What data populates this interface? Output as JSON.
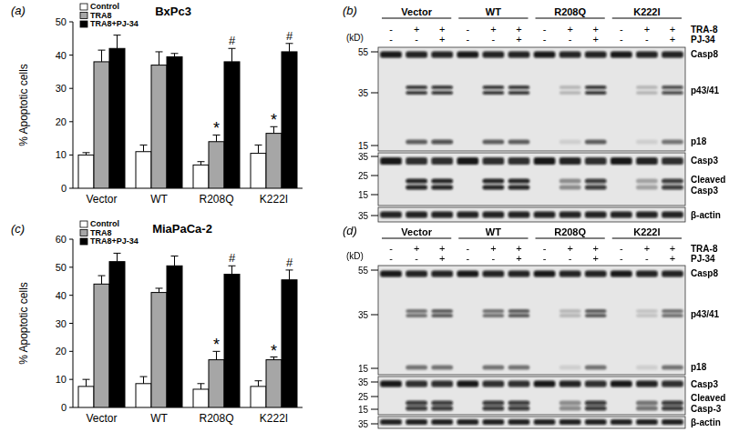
{
  "chart_data": [
    {
      "type": "bar",
      "panel_label": "(a)",
      "title": "BxPc3",
      "y_label": "% Apoptotic cells",
      "categories": [
        "Vector",
        "WT",
        "R208Q",
        "K222I"
      ],
      "series": [
        {
          "name": "Control",
          "color": "#ffffff",
          "values": [
            10,
            11,
            7,
            10.5
          ],
          "errors": [
            0.7,
            2,
            1,
            2.5
          ],
          "significance": [
            null,
            null,
            null,
            null
          ]
        },
        {
          "name": "TRA8",
          "color": "#a6a6a6",
          "values": [
            38,
            37,
            14,
            16.5
          ],
          "errors": [
            3.5,
            4,
            2,
            2
          ],
          "significance": [
            null,
            null,
            "*",
            "*"
          ]
        },
        {
          "name": "TRA8+PJ-34",
          "color": "#000000",
          "values": [
            42,
            39.5,
            38,
            41
          ],
          "errors": [
            4,
            1,
            4,
            2.5
          ],
          "significance": [
            null,
            null,
            "#",
            "#"
          ]
        }
      ],
      "ylim": [
        0,
        50
      ],
      "yticks": [
        0,
        10,
        20,
        30,
        40,
        50
      ],
      "legend": "upper left"
    },
    {
      "type": "bar",
      "panel_label": "(c)",
      "title": "MiaPaCa-2",
      "y_label": "% Apoptotic cells",
      "categories": [
        "Vector",
        "WT",
        "R208Q",
        "K222I"
      ],
      "series": [
        {
          "name": "Control",
          "color": "#ffffff",
          "values": [
            7.5,
            8.5,
            6.5,
            7.5
          ],
          "errors": [
            2.5,
            2.5,
            2,
            2
          ],
          "significance": [
            null,
            null,
            null,
            null
          ]
        },
        {
          "name": "TRA8",
          "color": "#a6a6a6",
          "values": [
            44,
            41,
            17,
            17
          ],
          "errors": [
            3,
            1.5,
            3,
            1
          ],
          "significance": [
            null,
            null,
            "*",
            "*"
          ]
        },
        {
          "name": "TRA8+PJ-34",
          "color": "#000000",
          "values": [
            52,
            50.5,
            47.5,
            45.5
          ],
          "errors": [
            3,
            3.5,
            3,
            3.5
          ],
          "significance": [
            null,
            null,
            "#",
            "#"
          ]
        }
      ],
      "ylim": [
        0,
        60
      ],
      "yticks": [
        0,
        10,
        20,
        30,
        40,
        50,
        60
      ],
      "legend": "upper left"
    }
  ],
  "blots": [
    {
      "panel_label": "(b)",
      "unit_label": "(kD)",
      "groups": [
        "Vector",
        "WT",
        "R208Q",
        "K222I"
      ],
      "treatments": [
        {
          "name": "TRA-8",
          "lanes": [
            "-",
            "+",
            "+",
            "-",
            "+",
            "+",
            "-",
            "+",
            "+",
            "-",
            "+",
            "+"
          ]
        },
        {
          "name": "PJ-34",
          "lanes": [
            "-",
            "-",
            "+",
            "-",
            "-",
            "+",
            "-",
            "-",
            "+",
            "-",
            "-",
            "+"
          ]
        }
      ],
      "panels": [
        {
          "markers": [
            55,
            35,
            15
          ],
          "bands": [
            {
              "label": [
                "Casp8"
              ],
              "intensity": [
                0.95,
                0.9,
                0.9,
                0.95,
                0.9,
                0.9,
                0.95,
                0.9,
                0.9,
                0.95,
                0.9,
                0.9
              ]
            },
            {
              "label": [
                "p43/41"
              ],
              "intensity": [
                0,
                0.8,
                0.8,
                0,
                0.8,
                0.8,
                0,
                0.2,
                0.8,
                0,
                0.2,
                0.7
              ]
            },
            {
              "label": [
                "p18"
              ],
              "intensity": [
                0,
                0.6,
                0.7,
                0,
                0.6,
                0.6,
                0,
                0.1,
                0.6,
                0,
                0.1,
                0.5
              ]
            }
          ]
        },
        {
          "markers": [
            35,
            25,
            15
          ],
          "bands": [
            {
              "label": [
                "Casp3"
              ],
              "intensity": [
                0.95,
                0.85,
                0.85,
                0.95,
                0.85,
                0.85,
                0.95,
                0.9,
                0.85,
                0.95,
                0.9,
                0.85
              ]
            },
            {
              "label": [
                "Cleaved",
                "Casp3"
              ],
              "intensity": [
                0,
                0.9,
                0.9,
                0,
                0.9,
                0.9,
                0,
                0.4,
                0.8,
                0,
                0.3,
                0.8
              ]
            }
          ]
        },
        {
          "markers": [
            35
          ],
          "bands": [
            {
              "label": [
                "β-actin"
              ],
              "intensity": [
                0.9,
                0.9,
                0.9,
                0.9,
                0.9,
                0.9,
                0.9,
                0.9,
                0.9,
                0.9,
                0.9,
                0.9
              ]
            }
          ]
        }
      ]
    },
    {
      "panel_label": "(d)",
      "unit_label": "(kD)",
      "groups": [
        "Vector",
        "WT",
        "R208Q",
        "K222I"
      ],
      "treatments": [
        {
          "name": "TRA-8",
          "lanes": [
            "-",
            "+",
            "+",
            "-",
            "+",
            "+",
            "-",
            "+",
            "+",
            "-",
            "+",
            "+"
          ]
        },
        {
          "name": "PJ-34",
          "lanes": [
            "-",
            "-",
            "+",
            "-",
            "-",
            "+",
            "-",
            "-",
            "+",
            "-",
            "-",
            "+"
          ]
        }
      ],
      "panels": [
        {
          "markers": [
            55,
            35,
            15
          ],
          "bands": [
            {
              "label": [
                "Casp8"
              ],
              "intensity": [
                0.95,
                0.9,
                0.9,
                0.95,
                0.9,
                0.9,
                0.95,
                0.9,
                0.9,
                0.95,
                0.9,
                0.9
              ]
            },
            {
              "label": [
                "p43/41"
              ],
              "intensity": [
                0,
                0.5,
                0.6,
                0,
                0.5,
                0.6,
                0,
                0.2,
                0.6,
                0,
                0.15,
                0.5
              ]
            },
            {
              "label": [
                "p18"
              ],
              "intensity": [
                0,
                0.5,
                0.5,
                0,
                0.5,
                0.5,
                0,
                0.1,
                0.5,
                0,
                0.1,
                0.5
              ]
            }
          ]
        },
        {
          "markers": [
            35,
            25,
            15
          ],
          "bands": [
            {
              "label": [
                "Casp3"
              ],
              "intensity": [
                0.95,
                0.85,
                0.85,
                0.95,
                0.85,
                0.85,
                0.95,
                0.9,
                0.85,
                0.95,
                0.9,
                0.85
              ]
            },
            {
              "label": [
                "Cleaved",
                "Casp-3"
              ],
              "intensity": [
                0,
                0.8,
                0.8,
                0,
                0.8,
                0.8,
                0,
                0.4,
                0.8,
                0,
                0.5,
                0.8
              ]
            }
          ]
        },
        {
          "markers": [
            35
          ],
          "bands": [
            {
              "label": [
                "β-actin"
              ],
              "intensity": [
                0.9,
                0.9,
                0.9,
                0.9,
                0.9,
                0.9,
                0.9,
                0.9,
                0.9,
                0.9,
                0.9,
                0.9
              ]
            }
          ]
        }
      ]
    }
  ]
}
